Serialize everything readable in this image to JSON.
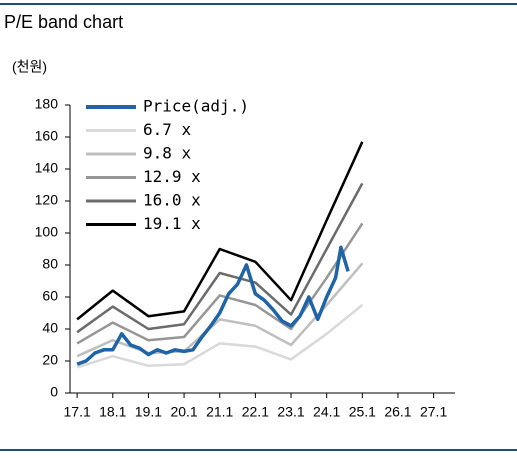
{
  "chart_data": {
    "type": "line",
    "title": "P/E band chart",
    "y_label": "(천원)",
    "xlim": [
      16.8,
      27.6
    ],
    "ylim": [
      0,
      180
    ],
    "xticks": [
      {
        "value": 17,
        "label": "17.1"
      },
      {
        "value": 18,
        "label": "18.1"
      },
      {
        "value": 19,
        "label": "19.1"
      },
      {
        "value": 20,
        "label": "20.1"
      },
      {
        "value": 21,
        "label": "21.1"
      },
      {
        "value": 22,
        "label": "22.1"
      },
      {
        "value": 23,
        "label": "23.1"
      },
      {
        "value": 24,
        "label": "24.1"
      },
      {
        "value": 25,
        "label": "25.1"
      },
      {
        "value": 26,
        "label": "26.1"
      },
      {
        "value": 27,
        "label": "27.1"
      }
    ],
    "yticks": [
      0,
      20,
      40,
      60,
      80,
      100,
      120,
      140,
      160,
      180
    ],
    "legend": "upper left",
    "series": [
      {
        "name": "Price(adj.)",
        "color": "#1f64a6",
        "width": 3.5,
        "x": [
          17.0,
          17.25,
          17.5,
          17.75,
          18.0,
          18.25,
          18.5,
          18.75,
          19.0,
          19.25,
          19.5,
          19.75,
          20.0,
          20.25,
          20.5,
          20.75,
          21.0,
          21.25,
          21.5,
          21.75,
          22.0,
          22.25,
          22.5,
          22.75,
          23.0,
          23.25,
          23.5,
          23.75,
          24.0,
          24.25,
          24.4,
          24.6
        ],
        "values": [
          18,
          20,
          25,
          27,
          27,
          37,
          30,
          28,
          24,
          27,
          25,
          27,
          26,
          27,
          35,
          42,
          50,
          62,
          68,
          80,
          62,
          58,
          52,
          45,
          42,
          48,
          60,
          46,
          60,
          72,
          91,
          76
        ]
      },
      {
        "name": "6.7 x",
        "color": "#d9d9d9",
        "width": 2.5,
        "x": [
          17,
          18,
          19,
          20,
          21,
          22,
          23,
          24,
          25
        ],
        "values": [
          16,
          23,
          17,
          18,
          31,
          29,
          21,
          37,
          55
        ]
      },
      {
        "name": "9.8 x",
        "color": "#bfbfbf",
        "width": 2.5,
        "x": [
          17,
          18,
          19,
          20,
          21,
          22,
          23,
          24,
          25
        ],
        "values": [
          23,
          33,
          25,
          26,
          46,
          42,
          30,
          55,
          81
        ]
      },
      {
        "name": "12.9 x",
        "color": "#969696",
        "width": 2.5,
        "x": [
          17,
          18,
          19,
          20,
          21,
          22,
          23,
          24,
          25
        ],
        "values": [
          31,
          44,
          33,
          35,
          61,
          55,
          40,
          72,
          106
        ]
      },
      {
        "name": "16.0 x",
        "color": "#6b6b6b",
        "width": 2.5,
        "x": [
          17,
          18,
          19,
          20,
          21,
          22,
          23,
          24,
          25
        ],
        "values": [
          38,
          54,
          40,
          43,
          75,
          69,
          49,
          90,
          131
        ]
      },
      {
        "name": "19.1 x",
        "color": "#000000",
        "width": 2.5,
        "x": [
          17,
          18,
          19,
          20,
          21,
          22,
          23,
          24,
          25
        ],
        "values": [
          46,
          64,
          48,
          51,
          90,
          82,
          58,
          108,
          157
        ]
      }
    ]
  }
}
